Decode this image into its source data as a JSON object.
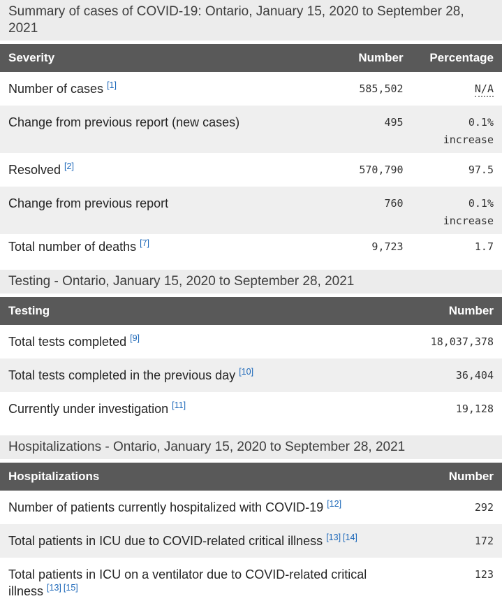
{
  "theme": {
    "header_bg": "#595959",
    "header_text": "#ffffff",
    "caption_bg": "#ececec",
    "zebra_row_bg": "#efefef",
    "footnote_link_color": "#1a66b8"
  },
  "sections": [
    {
      "caption": "Summary of cases of COVID-19: Ontario, January 15, 2020 to September 28, 2021",
      "columns": [
        "Severity",
        "Number",
        "Percentage"
      ],
      "rows": [
        {
          "label": "Number of cases",
          "footnotes": [
            "[1]"
          ],
          "number": "585,502",
          "percentage": "N/A",
          "na": true
        },
        {
          "label": "Change from previous report (new cases)",
          "footnotes": [],
          "number": "495",
          "percentage": "0.1% increase"
        },
        {
          "label": "Resolved",
          "footnotes": [
            "[2]"
          ],
          "number": "570,790",
          "percentage": "97.5"
        },
        {
          "label": "Change from previous report",
          "footnotes": [],
          "number": "760",
          "percentage": "0.1% increase"
        },
        {
          "label": "Total number of deaths",
          "footnotes": [
            "[7]"
          ],
          "number": "9,723",
          "percentage": "1.7",
          "compact": true
        }
      ]
    },
    {
      "caption": "Testing - Ontario, January 15, 2020 to September 28, 2021",
      "columns": [
        "Testing",
        "Number"
      ],
      "rows": [
        {
          "label": "Total tests completed",
          "footnotes": [
            "[9]"
          ],
          "number": "18,037,378"
        },
        {
          "label": "Total tests completed in the previous day",
          "footnotes": [
            "[10]"
          ],
          "number": "36,404"
        },
        {
          "label": "Currently under investigation",
          "footnotes": [
            "[11]"
          ],
          "number": "19,128"
        }
      ]
    },
    {
      "caption": "Hospitalizations - Ontario, January 15, 2020 to September 28, 2021",
      "columns": [
        "Hospitalizations",
        "Number"
      ],
      "rows": [
        {
          "label": "Number of patients currently hospitalized with COVID-19",
          "footnotes": [
            "[12]"
          ],
          "number": "292"
        },
        {
          "label": "Total patients in ICU due to COVID-related critical illness",
          "footnotes": [
            "[13]",
            "[14]"
          ],
          "number": "172"
        },
        {
          "label": "Total patients in ICU on a ventilator due to COVID-related critical illness",
          "footnotes": [
            "[13]",
            "[15]"
          ],
          "number": "123"
        }
      ]
    }
  ]
}
